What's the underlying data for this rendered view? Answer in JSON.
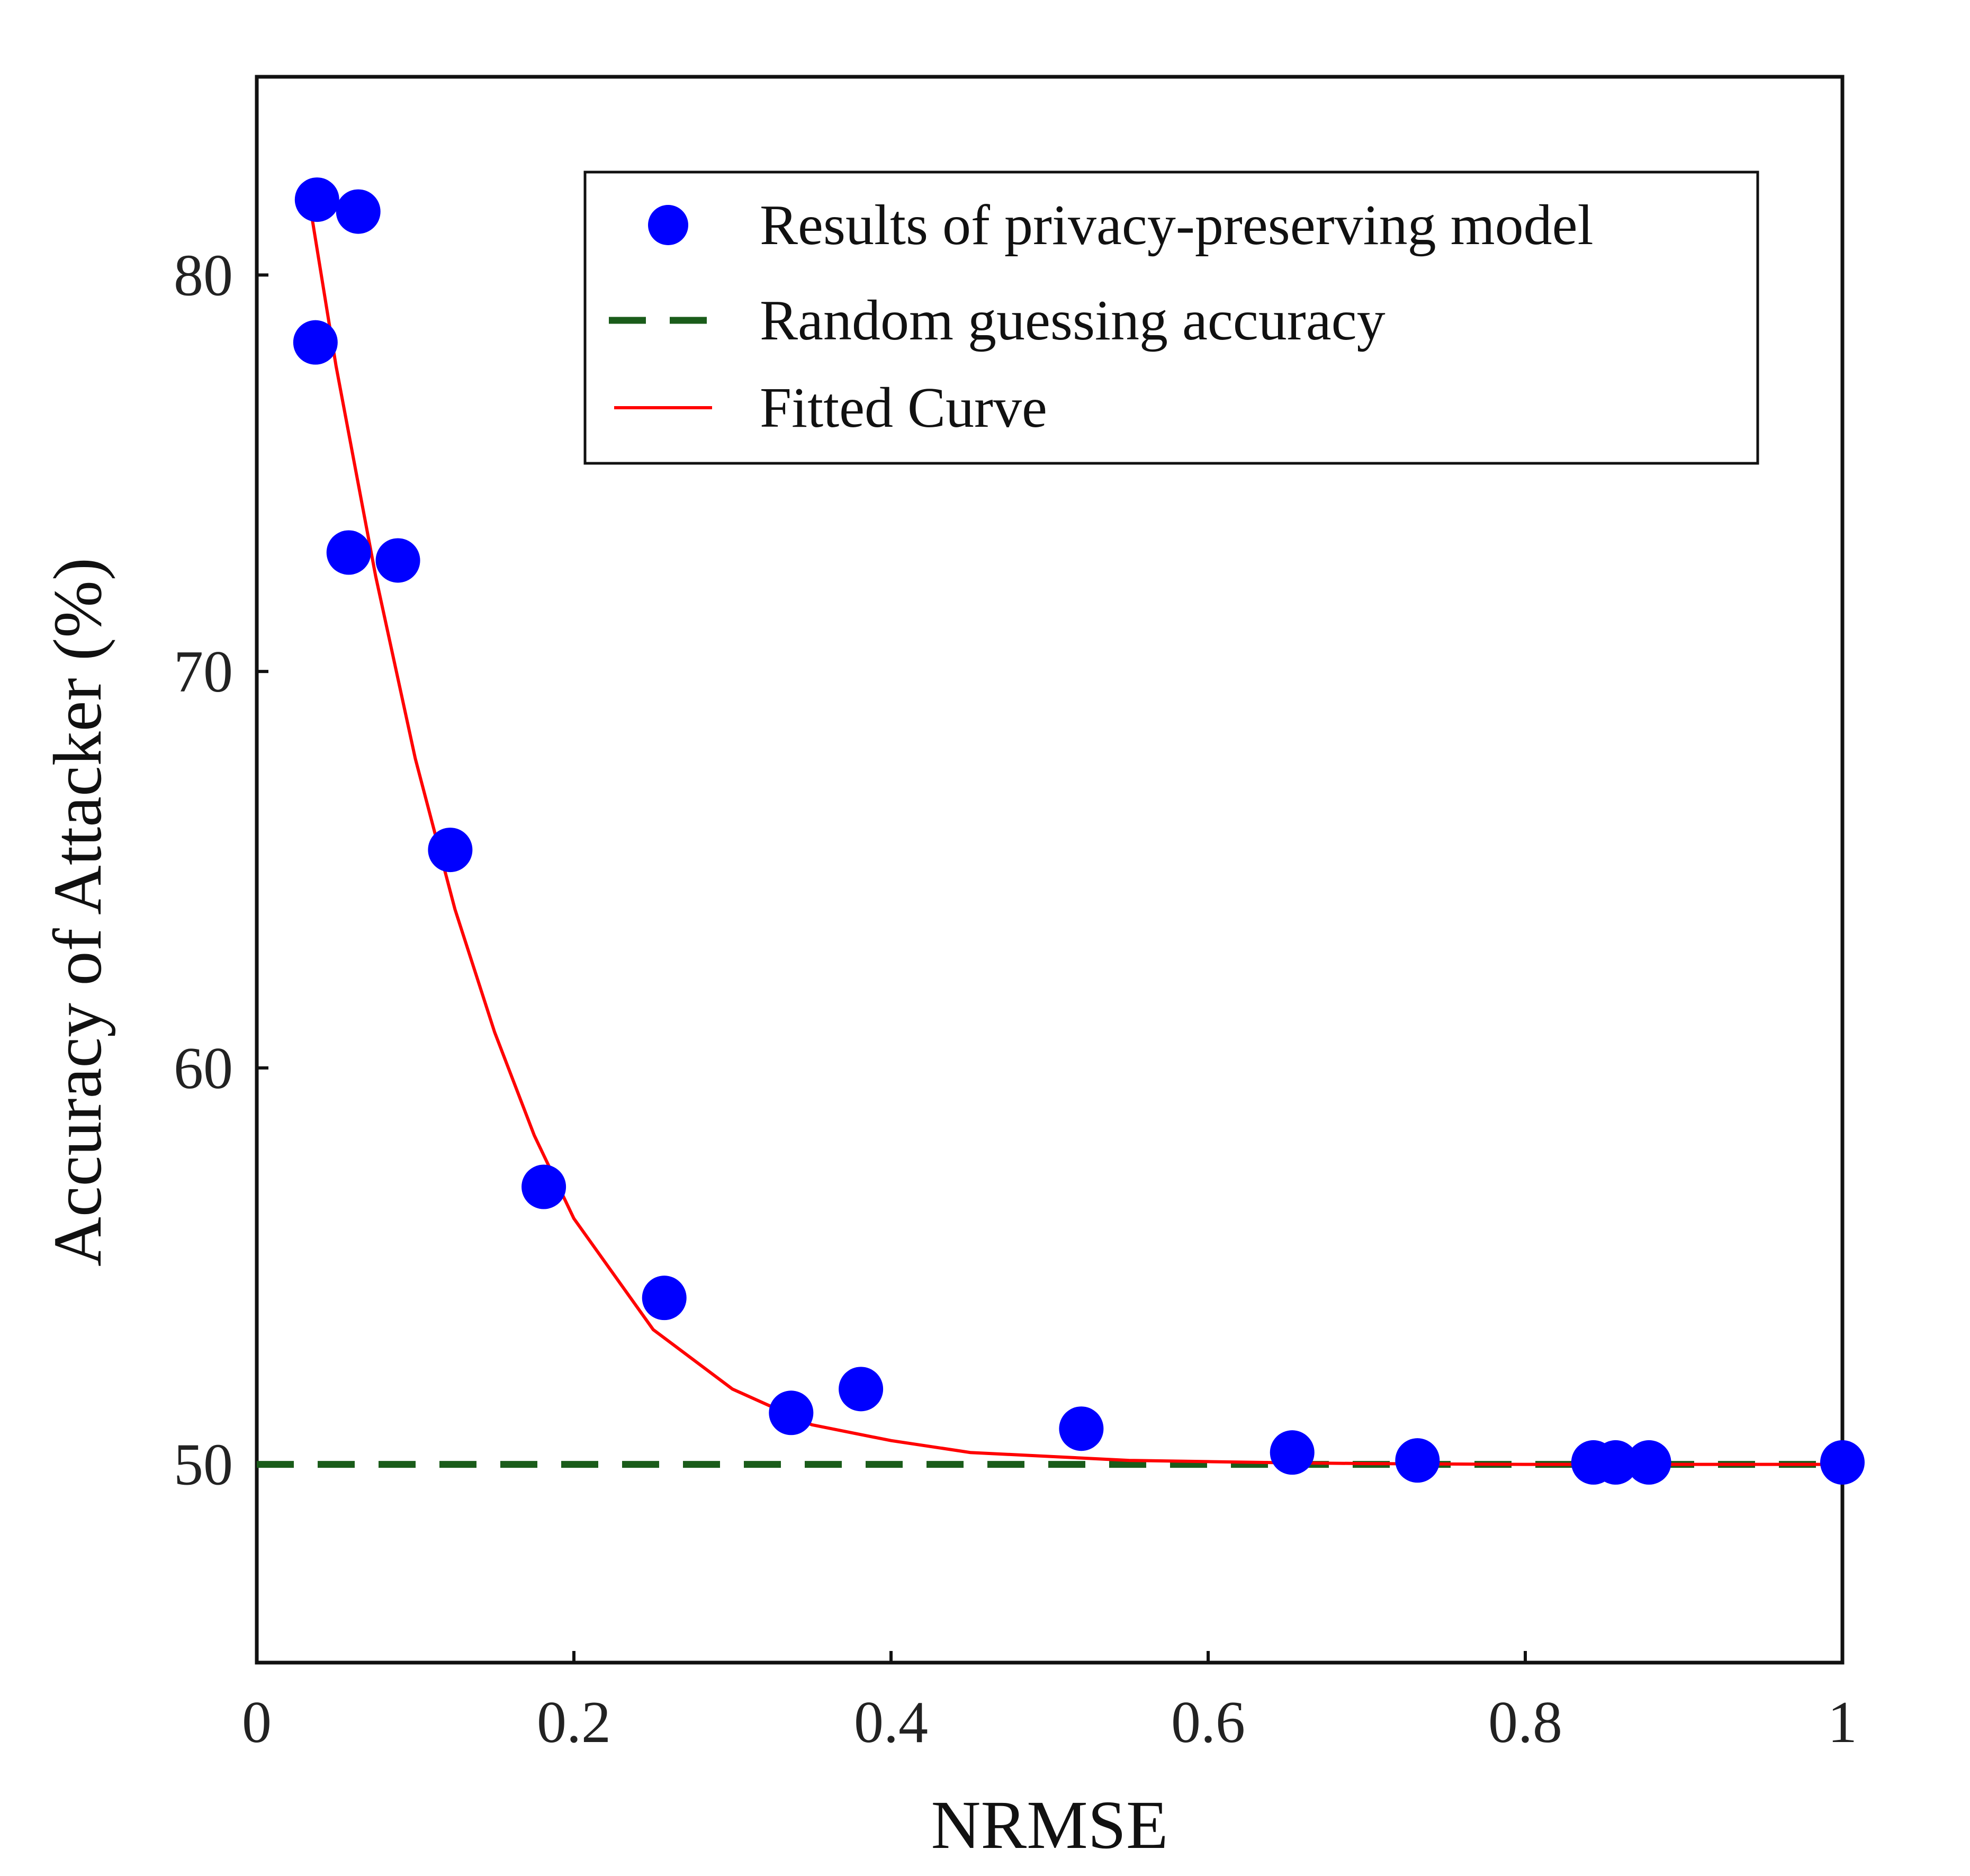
{
  "chart_data": {
    "type": "scatter",
    "xlabel": "NRMSE",
    "ylabel": "Accuracy of Attacker (%)",
    "xlim": [
      0,
      1
    ],
    "ylim": [
      45,
      85
    ],
    "x_ticks": [
      0,
      0.2,
      0.4,
      0.6,
      0.8,
      1
    ],
    "x_tick_labels": [
      "0",
      "0.2",
      "0.4",
      "0.6",
      "0.8",
      "1"
    ],
    "y_ticks": [
      50,
      60,
      70,
      80
    ],
    "y_tick_labels": [
      "50",
      "60",
      "70",
      "80"
    ],
    "grid": false,
    "legend_position": "top-right",
    "series": [
      {
        "name": "Results of privacy-preserving model",
        "kind": "scatter",
        "color": "#0000ff",
        "points": [
          {
            "x": 0.038,
            "y": 81.9
          },
          {
            "x": 0.064,
            "y": 81.6
          },
          {
            "x": 0.037,
            "y": 78.3
          },
          {
            "x": 0.058,
            "y": 73.0
          },
          {
            "x": 0.089,
            "y": 72.8
          },
          {
            "x": 0.122,
            "y": 65.5
          },
          {
            "x": 0.181,
            "y": 57.0
          },
          {
            "x": 0.257,
            "y": 54.2
          },
          {
            "x": 0.337,
            "y": 51.3
          },
          {
            "x": 0.381,
            "y": 51.9
          },
          {
            "x": 0.52,
            "y": 50.9
          },
          {
            "x": 0.653,
            "y": 50.3
          },
          {
            "x": 0.732,
            "y": 50.1
          },
          {
            "x": 0.843,
            "y": 50.05
          },
          {
            "x": 0.857,
            "y": 50.05
          },
          {
            "x": 0.878,
            "y": 50.05
          },
          {
            "x": 1.0,
            "y": 50.05
          }
        ]
      },
      {
        "name": "Random guessing accuracy",
        "kind": "hline",
        "color": "#1a5c1a",
        "dash": true,
        "y": 50
      },
      {
        "name": "Fitted Curve",
        "kind": "line",
        "color": "#ff0000",
        "x": [
          0.033,
          0.05,
          0.075,
          0.1,
          0.125,
          0.15,
          0.175,
          0.2,
          0.25,
          0.3,
          0.35,
          0.4,
          0.45,
          0.5,
          0.55,
          0.6,
          0.65,
          0.7,
          0.75,
          0.8,
          0.85,
          0.9,
          0.95,
          1.0
        ],
        "y": [
          81.9,
          77.7,
          72.4,
          67.8,
          64.0,
          60.9,
          58.3,
          56.2,
          53.4,
          51.9,
          51.0,
          50.6,
          50.3,
          50.2,
          50.1,
          50.07,
          50.04,
          50.02,
          50.01,
          50.0,
          50.0,
          50.0,
          50.0,
          50.0
        ]
      }
    ]
  }
}
